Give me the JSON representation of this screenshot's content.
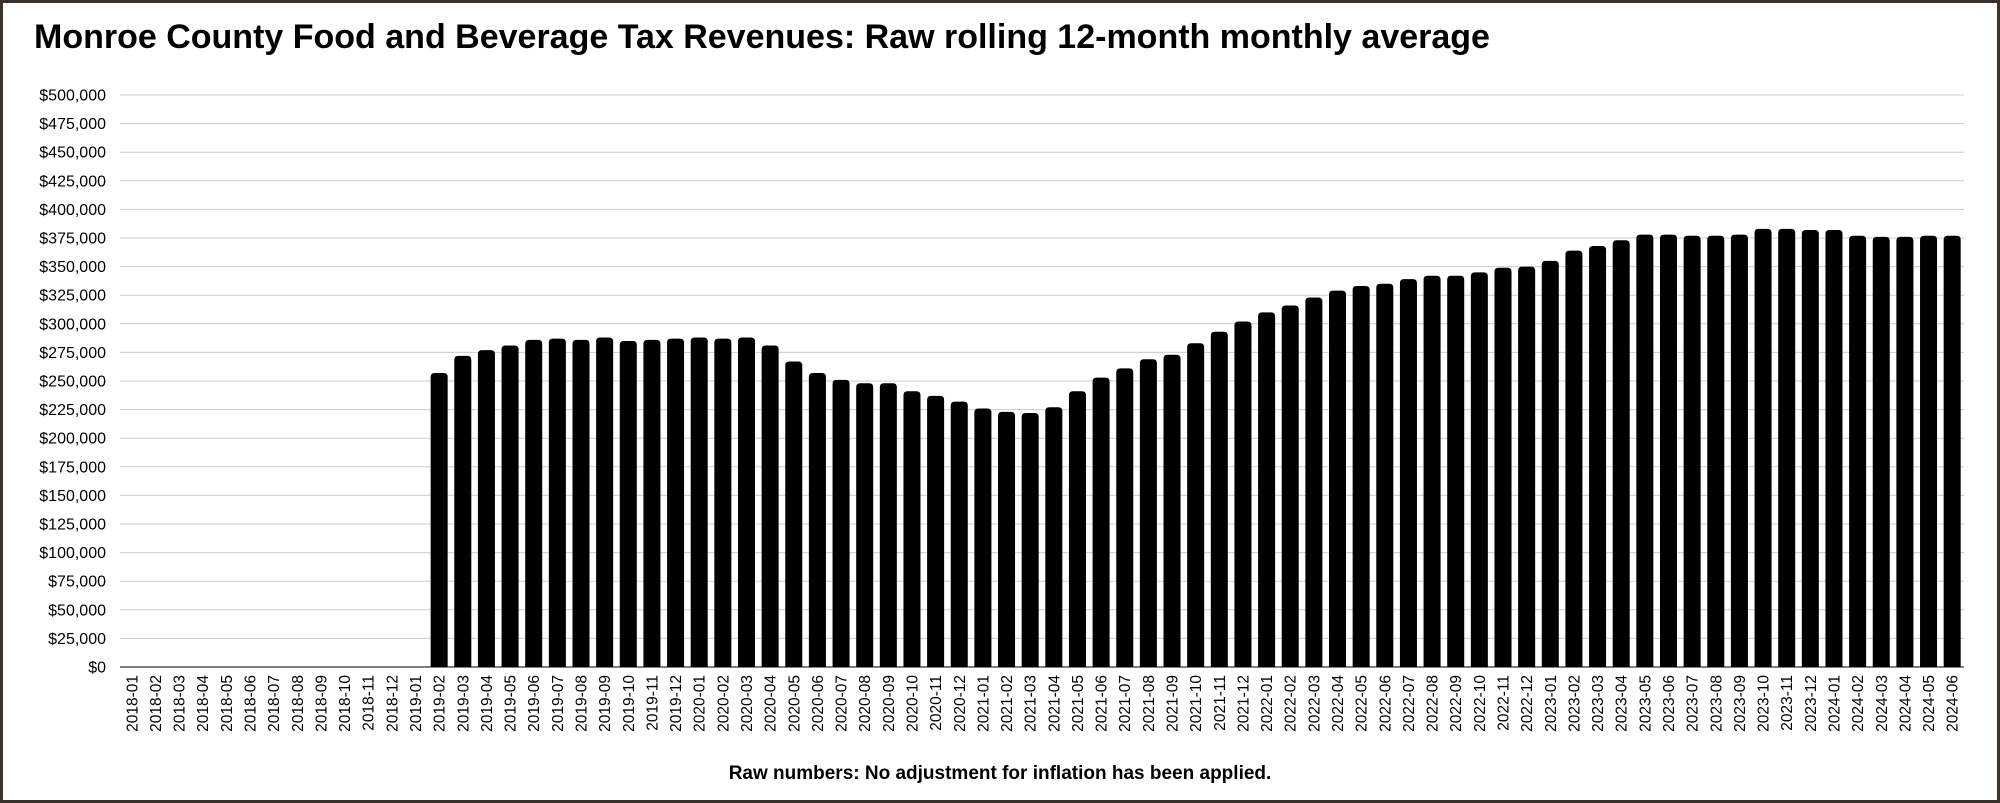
{
  "chart_data": {
    "type": "bar",
    "title": "Monroe County Food and Beverage Tax Revenues: Raw rolling 12-month monthly average",
    "footnote": "Raw numbers: No adjustment for inflation has been applied.",
    "xlabel": "",
    "ylabel": "",
    "ylim": [
      0,
      500000
    ],
    "yticks": [
      0,
      25000,
      50000,
      75000,
      100000,
      125000,
      150000,
      175000,
      200000,
      225000,
      250000,
      275000,
      300000,
      325000,
      350000,
      375000,
      400000,
      425000,
      450000,
      475000,
      500000
    ],
    "ytick_labels": [
      "$0",
      "$25,000",
      "$50,000",
      "$75,000",
      "$100,000",
      "$125,000",
      "$150,000",
      "$175,000",
      "$200,000",
      "$225,000",
      "$250,000",
      "$275,000",
      "$300,000",
      "$325,000",
      "$350,000",
      "$375,000",
      "$400,000",
      "$425,000",
      "$450,000",
      "$475,000",
      "$500,000"
    ],
    "grid": true,
    "bar_color": "#000000",
    "grid_color": "#cccccc",
    "categories": [
      "2018-01",
      "2018-02",
      "2018-03",
      "2018-04",
      "2018-05",
      "2018-06",
      "2018-07",
      "2018-08",
      "2018-09",
      "2018-10",
      "2018-11",
      "2018-12",
      "2019-01",
      "2019-02",
      "2019-03",
      "2019-04",
      "2019-05",
      "2019-06",
      "2019-07",
      "2019-08",
      "2019-09",
      "2019-10",
      "2019-11",
      "2019-12",
      "2020-01",
      "2020-02",
      "2020-03",
      "2020-04",
      "2020-05",
      "2020-06",
      "2020-07",
      "2020-08",
      "2020-09",
      "2020-10",
      "2020-11",
      "2020-12",
      "2021-01",
      "2021-02",
      "2021-03",
      "2021-04",
      "2021-05",
      "2021-06",
      "2021-07",
      "2021-08",
      "2021-09",
      "2021-10",
      "2021-11",
      "2021-12",
      "2022-01",
      "2022-02",
      "2022-03",
      "2022-04",
      "2022-05",
      "2022-06",
      "2022-07",
      "2022-08",
      "2022-09",
      "2022-10",
      "2022-11",
      "2022-12",
      "2023-01",
      "2023-02",
      "2023-03",
      "2023-04",
      "2023-05",
      "2023-06",
      "2023-07",
      "2023-08",
      "2023-09",
      "2023-10",
      "2023-11",
      "2023-12",
      "2024-01",
      "2024-02",
      "2024-03",
      "2024-04",
      "2024-05",
      "2024-06"
    ],
    "values": [
      null,
      null,
      null,
      null,
      null,
      null,
      null,
      null,
      null,
      null,
      null,
      null,
      null,
      257000,
      272000,
      277000,
      281000,
      286000,
      287000,
      286000,
      288000,
      285000,
      286000,
      287000,
      288000,
      287000,
      288000,
      281000,
      267000,
      257000,
      251000,
      248000,
      248000,
      241000,
      237000,
      232000,
      226000,
      223000,
      222000,
      227000,
      241000,
      253000,
      261000,
      269000,
      273000,
      283000,
      293000,
      302000,
      310000,
      316000,
      323000,
      329000,
      333000,
      335000,
      339000,
      342000,
      342000,
      345000,
      349000,
      350000,
      355000,
      364000,
      368000,
      373000,
      378000,
      378000,
      377000,
      377000,
      378000,
      383000,
      383000,
      382000,
      382000,
      377000,
      376000,
      376000,
      377000,
      377000
    ]
  }
}
